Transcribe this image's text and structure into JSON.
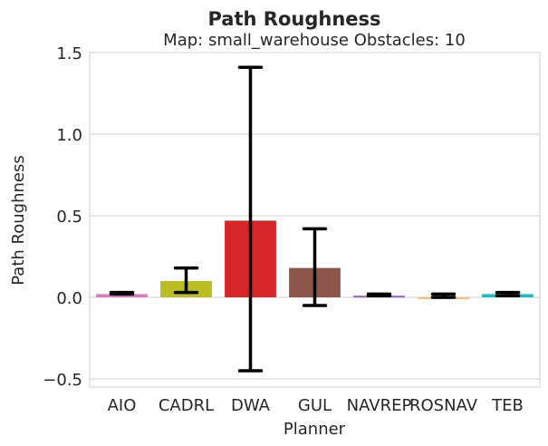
{
  "chart_data": {
    "type": "bar",
    "title": "Path Roughness",
    "subtitle": "Map: small_warehouse Obstacles: 10",
    "xlabel": "Planner",
    "ylabel": "Path Roughness",
    "ylim": [
      -0.55,
      1.5
    ],
    "yticks": [
      -0.5,
      0.0,
      0.5,
      1.0,
      1.5
    ],
    "ytick_labels": [
      "−0.5",
      "0.0",
      "0.5",
      "1.0",
      "1.5"
    ],
    "grid": true,
    "categories": [
      "AIO",
      "CADRL",
      "DWA",
      "GUL",
      "NAVREP",
      "ROSNAV",
      "TEB"
    ],
    "values": [
      0.02,
      0.1,
      0.47,
      0.18,
      0.01,
      0.0,
      0.02
    ],
    "error_low": [
      0.02,
      0.03,
      -0.45,
      -0.05,
      0.01,
      0.0,
      0.01
    ],
    "error_high": [
      0.03,
      0.18,
      1.41,
      0.42,
      0.02,
      0.02,
      0.03
    ],
    "colors": [
      "#e377c2",
      "#bcbd22",
      "#d62728",
      "#8c564b",
      "#9467bd",
      "#ffbb78",
      "#17becf"
    ]
  }
}
